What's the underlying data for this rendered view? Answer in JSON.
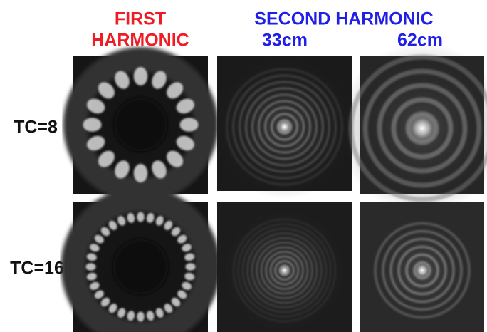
{
  "columns": {
    "first": [
      "FIRST",
      "HARMONIC"
    ],
    "second": "SECOND HARMONIC",
    "distances": [
      "33cm",
      "62cm"
    ]
  },
  "rows": [
    "TC=8",
    "TC=16"
  ]
}
